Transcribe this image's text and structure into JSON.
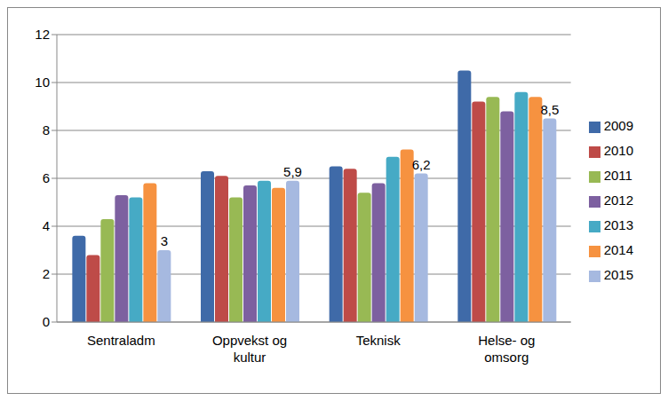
{
  "chart_data": {
    "type": "bar",
    "categories": [
      "Sentraladm",
      "Oppvekst og kultur",
      "Teknisk",
      "Helse- og omsorg"
    ],
    "series": [
      {
        "name": "2009",
        "color": "#3f6aa8",
        "values": [
          3.6,
          6.3,
          6.5,
          10.5
        ]
      },
      {
        "name": "2010",
        "color": "#be4b48",
        "values": [
          2.8,
          6.1,
          6.4,
          9.2
        ]
      },
      {
        "name": "2011",
        "color": "#98b954",
        "values": [
          4.3,
          5.2,
          5.4,
          9.4
        ]
      },
      {
        "name": "2012",
        "color": "#7d60a0",
        "values": [
          5.3,
          5.7,
          5.8,
          8.8
        ]
      },
      {
        "name": "2013",
        "color": "#46aac5",
        "values": [
          5.2,
          5.9,
          6.9,
          9.6
        ]
      },
      {
        "name": "2014",
        "color": "#f69240",
        "values": [
          5.8,
          5.6,
          7.2,
          9.4
        ]
      },
      {
        "name": "2015",
        "color": "#a6b9e0",
        "values": [
          3,
          5.9,
          6.2,
          8.5
        ],
        "data_labels": true,
        "value_labels": [
          "3",
          "5,9",
          "6,2",
          "8,5"
        ]
      }
    ],
    "ylim": [
      0,
      12
    ],
    "yticks": [
      0,
      2,
      4,
      6,
      8,
      10,
      12
    ],
    "grid": true,
    "legend": "right"
  }
}
